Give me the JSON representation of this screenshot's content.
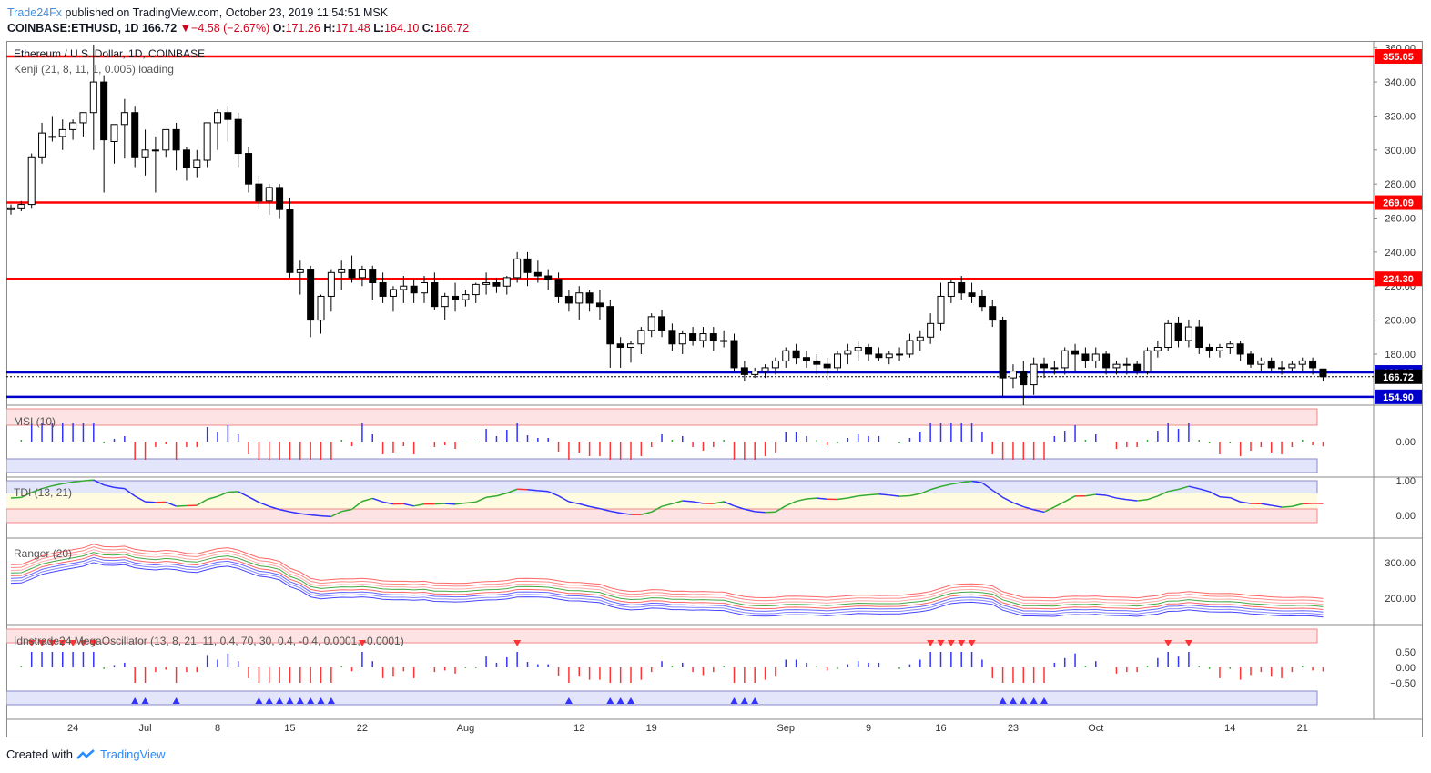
{
  "header": {
    "publisher": "Trade24Fx",
    "published_text": "published on TradingView.com, October 23, 2019 11:54:51 MSK",
    "symbol": "COINBASE:ETHUSD, 1D",
    "last": "166.72",
    "change": "−4.58 (−2.67%)",
    "o_label": "O:",
    "o": "171.26",
    "h_label": "H:",
    "h": "171.48",
    "l_label": "L:",
    "l": "164.10",
    "c_label": "C:",
    "c": "166.72"
  },
  "footer": {
    "created": "Created with",
    "brand": "TradingView"
  },
  "colors": {
    "up": "#ffffff",
    "down": "#000000",
    "res": "#ff0000",
    "sup": "#0000cc",
    "bull": "#3333ff",
    "bear": "#ff3333",
    "neutral": "#33aa33"
  },
  "chart_data": {
    "type": "candlestick",
    "title": "Ethereum / U.S. Dollar, 1D, COINBASE",
    "subtitle": "Kenji (21, 8, 11, 1, 0.005) loading",
    "y_ticks": [
      180,
      200,
      220,
      240,
      260,
      280,
      300,
      320,
      340,
      360
    ],
    "ylim": [
      150,
      362
    ],
    "x_ticks": [
      {
        "i": 6,
        "label": "24"
      },
      {
        "i": 13,
        "label": "Jul"
      },
      {
        "i": 20,
        "label": "8"
      },
      {
        "i": 27,
        "label": "15"
      },
      {
        "i": 34,
        "label": "22"
      },
      {
        "i": 44,
        "label": "Aug"
      },
      {
        "i": 55,
        "label": "12"
      },
      {
        "i": 62,
        "label": "19"
      },
      {
        "i": 75,
        "label": "Sep"
      },
      {
        "i": 83,
        "label": "9"
      },
      {
        "i": 90,
        "label": "16"
      },
      {
        "i": 97,
        "label": "23"
      },
      {
        "i": 105,
        "label": "Oct"
      },
      {
        "i": 118,
        "label": "14"
      },
      {
        "i": 125,
        "label": "21"
      }
    ],
    "levels": [
      {
        "value": 355.05,
        "label": "355.05",
        "kind": "resistance"
      },
      {
        "value": 269.09,
        "label": "269.09",
        "kind": "resistance"
      },
      {
        "value": 224.3,
        "label": "224.30",
        "kind": "resistance"
      },
      {
        "value": 169.25,
        "label": "169.25",
        "kind": "support"
      },
      {
        "value": 154.9,
        "label": "154.90",
        "kind": "support"
      }
    ],
    "last_price": {
      "value": 166.72,
      "label": "166.72"
    },
    "ohlc": [
      [
        265,
        268,
        262,
        266
      ],
      [
        266,
        270,
        264,
        268
      ],
      [
        268,
        298,
        266,
        296
      ],
      [
        296,
        316,
        292,
        310
      ],
      [
        308,
        320,
        305,
        308
      ],
      [
        308,
        318,
        300,
        312
      ],
      [
        312,
        318,
        306,
        316
      ],
      [
        316,
        322,
        308,
        322
      ],
      [
        322,
        362,
        300,
        340
      ],
      [
        340,
        344,
        275,
        306
      ],
      [
        305,
        315,
        292,
        315
      ],
      [
        315,
        330,
        295,
        322
      ],
      [
        322,
        326,
        290,
        296
      ],
      [
        296,
        312,
        285,
        300
      ],
      [
        300,
        308,
        275,
        300
      ],
      [
        300,
        312,
        296,
        312
      ],
      [
        312,
        316,
        288,
        300
      ],
      [
        300,
        302,
        282,
        290
      ],
      [
        290,
        300,
        284,
        294
      ],
      [
        294,
        316,
        290,
        316
      ],
      [
        316,
        324,
        300,
        322
      ],
      [
        322,
        326,
        305,
        318
      ],
      [
        318,
        322,
        290,
        298
      ],
      [
        298,
        302,
        275,
        280
      ],
      [
        280,
        285,
        265,
        270
      ],
      [
        270,
        280,
        262,
        278
      ],
      [
        278,
        280,
        260,
        265
      ],
      [
        265,
        272,
        225,
        228
      ],
      [
        228,
        235,
        215,
        230
      ],
      [
        230,
        232,
        190,
        200
      ],
      [
        200,
        215,
        192,
        214
      ],
      [
        214,
        230,
        205,
        228
      ],
      [
        228,
        235,
        218,
        230
      ],
      [
        230,
        238,
        222,
        225
      ],
      [
        225,
        232,
        220,
        230
      ],
      [
        230,
        232,
        212,
        222
      ],
      [
        222,
        228,
        210,
        214
      ],
      [
        214,
        220,
        205,
        218
      ],
      [
        218,
        226,
        210,
        220
      ],
      [
        220,
        224,
        210,
        216
      ],
      [
        216,
        226,
        210,
        222
      ],
      [
        222,
        228,
        206,
        208
      ],
      [
        208,
        216,
        200,
        214
      ],
      [
        214,
        222,
        205,
        212
      ],
      [
        212,
        218,
        208,
        215
      ],
      [
        215,
        222,
        210,
        221
      ],
      [
        221,
        228,
        215,
        222
      ],
      [
        222,
        225,
        216,
        220
      ],
      [
        220,
        226,
        215,
        225
      ],
      [
        225,
        240,
        222,
        236
      ],
      [
        236,
        240,
        220,
        228
      ],
      [
        228,
        235,
        222,
        226
      ],
      [
        226,
        230,
        218,
        224
      ],
      [
        224,
        228,
        210,
        214
      ],
      [
        214,
        218,
        205,
        210
      ],
      [
        210,
        220,
        200,
        216
      ],
      [
        216,
        218,
        205,
        210
      ],
      [
        210,
        218,
        200,
        208
      ],
      [
        208,
        212,
        172,
        186
      ],
      [
        186,
        190,
        172,
        184
      ],
      [
        184,
        188,
        175,
        186
      ],
      [
        186,
        196,
        180,
        194
      ],
      [
        194,
        204,
        190,
        202
      ],
      [
        202,
        206,
        190,
        194
      ],
      [
        194,
        198,
        182,
        186
      ],
      [
        186,
        194,
        180,
        192
      ],
      [
        192,
        196,
        185,
        188
      ],
      [
        188,
        196,
        184,
        192
      ],
      [
        192,
        196,
        182,
        188
      ],
      [
        188,
        194,
        184,
        188
      ],
      [
        188,
        192,
        170,
        172
      ],
      [
        172,
        176,
        164,
        168
      ],
      [
        168,
        172,
        166,
        170
      ],
      [
        170,
        174,
        166,
        172
      ],
      [
        172,
        178,
        168,
        176
      ],
      [
        176,
        184,
        172,
        182
      ],
      [
        182,
        186,
        174,
        178
      ],
      [
        178,
        182,
        172,
        176
      ],
      [
        176,
        180,
        168,
        174
      ],
      [
        174,
        178,
        165,
        172
      ],
      [
        172,
        182,
        170,
        180
      ],
      [
        180,
        186,
        174,
        182
      ],
      [
        182,
        188,
        176,
        184
      ],
      [
        184,
        186,
        176,
        180
      ],
      [
        180,
        184,
        176,
        178
      ],
      [
        178,
        182,
        174,
        180
      ],
      [
        180,
        184,
        176,
        180
      ],
      [
        180,
        192,
        178,
        188
      ],
      [
        188,
        194,
        182,
        190
      ],
      [
        190,
        204,
        186,
        198
      ],
      [
        198,
        222,
        194,
        214
      ],
      [
        214,
        224,
        210,
        222
      ],
      [
        222,
        226,
        212,
        216
      ],
      [
        216,
        222,
        210,
        214
      ],
      [
        214,
        218,
        205,
        208
      ],
      [
        208,
        212,
        196,
        200
      ],
      [
        200,
        202,
        155,
        166
      ],
      [
        166,
        174,
        160,
        170
      ],
      [
        170,
        176,
        150,
        162
      ],
      [
        162,
        178,
        156,
        174
      ],
      [
        174,
        178,
        166,
        172
      ],
      [
        172,
        176,
        168,
        172
      ],
      [
        172,
        184,
        168,
        182
      ],
      [
        182,
        186,
        170,
        180
      ],
      [
        180,
        184,
        172,
        176
      ],
      [
        176,
        184,
        172,
        180
      ],
      [
        180,
        182,
        168,
        172
      ],
      [
        172,
        176,
        168,
        174
      ],
      [
        174,
        178,
        168,
        174
      ],
      [
        174,
        176,
        168,
        170
      ],
      [
        170,
        184,
        168,
        182
      ],
      [
        182,
        188,
        178,
        184
      ],
      [
        184,
        200,
        182,
        198
      ],
      [
        198,
        202,
        184,
        188
      ],
      [
        188,
        200,
        184,
        196
      ],
      [
        196,
        200,
        180,
        184
      ],
      [
        184,
        186,
        178,
        182
      ],
      [
        182,
        186,
        178,
        184
      ],
      [
        184,
        188,
        180,
        186
      ],
      [
        186,
        188,
        176,
        180
      ],
      [
        180,
        182,
        172,
        174
      ],
      [
        174,
        178,
        170,
        176
      ],
      [
        176,
        178,
        170,
        172
      ],
      [
        172,
        176,
        168,
        172
      ],
      [
        172,
        176,
        170,
        174
      ],
      [
        174,
        178,
        170,
        176
      ],
      [
        176,
        178,
        168,
        172
      ],
      [
        171.26,
        171.48,
        164.1,
        166.72
      ]
    ],
    "panes": [
      {
        "title": "MSI (10)",
        "y_ticks": [
          0
        ],
        "tick_labels": [
          "0.00"
        ]
      },
      {
        "title": "TDI (13, 21)",
        "y_ticks": [
          1,
          0
        ],
        "tick_labels": [
          "1.00",
          "0.00"
        ]
      },
      {
        "title": "Ranger (20)",
        "y_ticks": [
          300,
          200
        ],
        "tick_labels": [
          "300.00",
          "200.00"
        ]
      },
      {
        "title": "Idnstrade24 MegaOscillator (13, 8, 21, 11, 0.4, 70, 30, 0.4, -0.4, 0.0001, -0.0001)",
        "y_ticks": [
          0.5,
          0,
          -0.5
        ],
        "tick_labels": [
          "0.50",
          "0.00",
          "−0.50"
        ]
      }
    ]
  }
}
